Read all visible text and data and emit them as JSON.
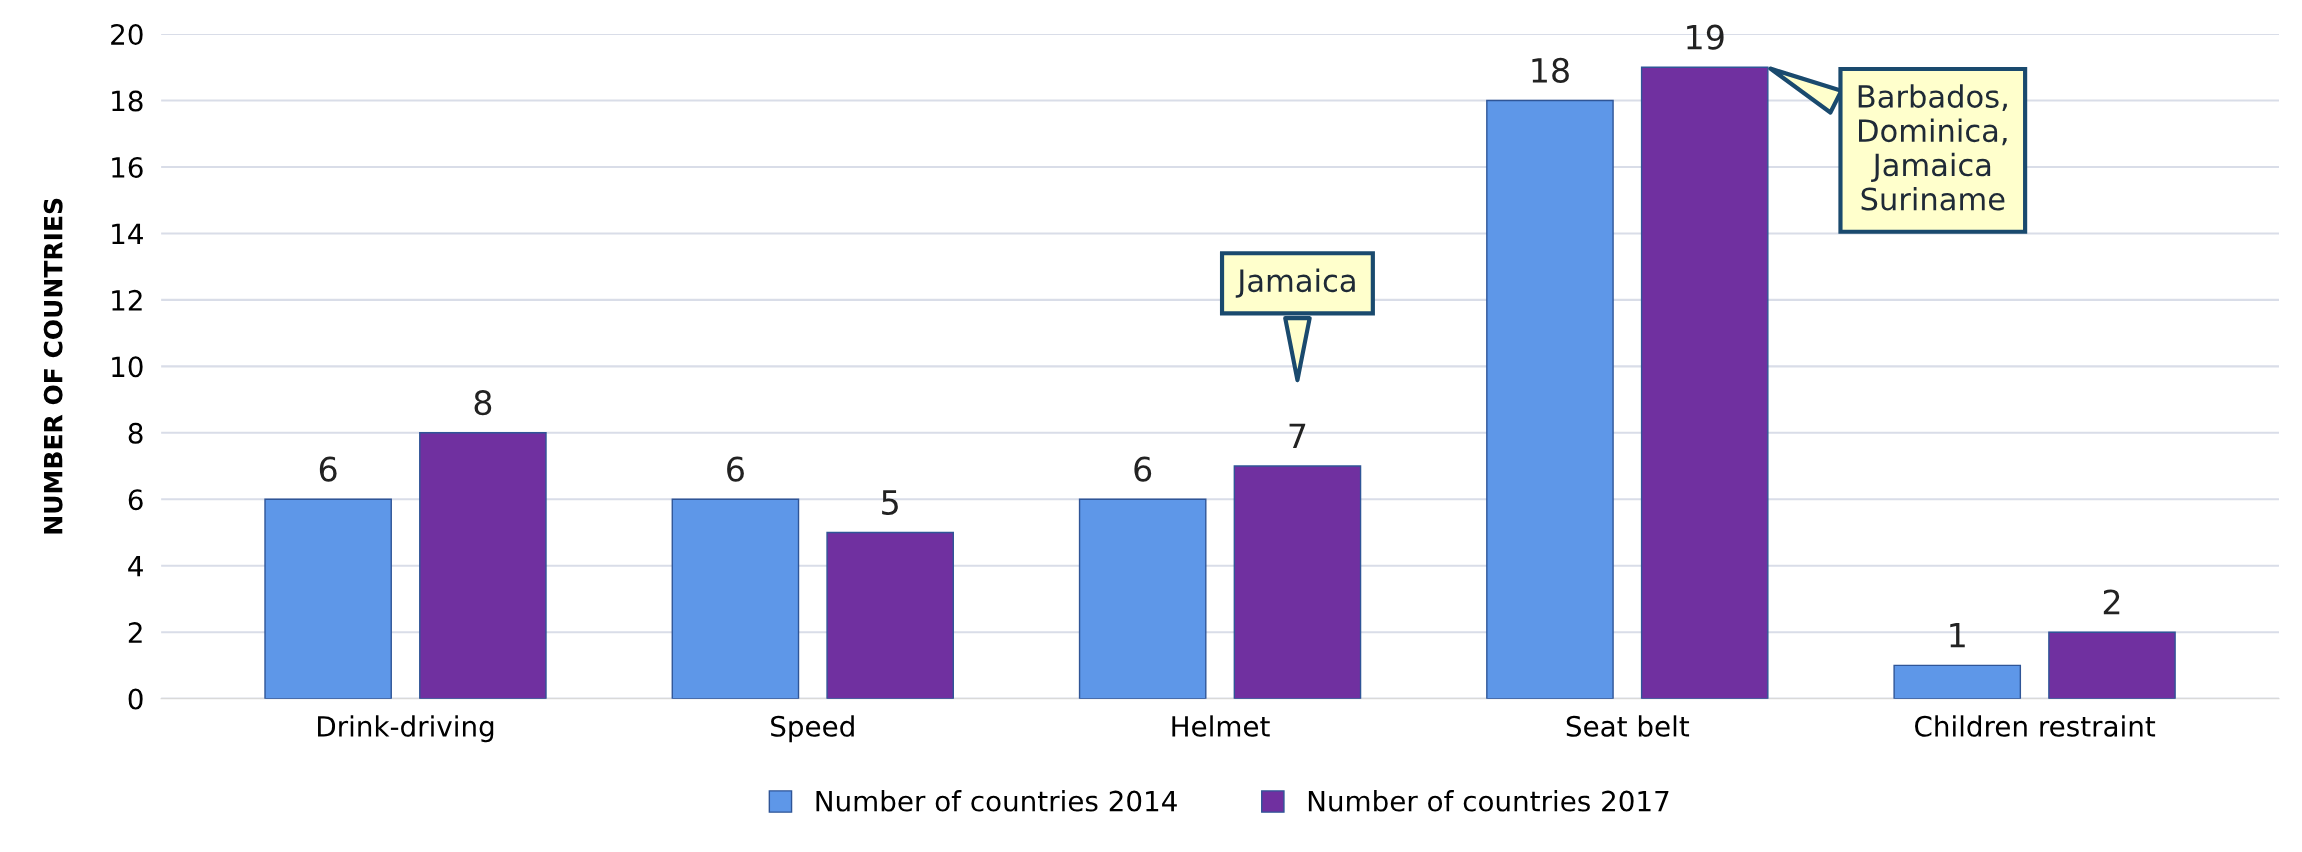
{
  "chart_data": {
    "type": "bar",
    "ylabel": "NUMBER OF COUNTRIES",
    "categories": [
      "Drink-driving",
      "Speed",
      "Helmet",
      "Seat belt",
      "Children restraint"
    ],
    "series": [
      {
        "name": "Number of countries 2014",
        "color": "#5e97e8",
        "values": [
          6,
          6,
          6,
          18,
          1
        ]
      },
      {
        "name": "Number of countries 2017",
        "color": "#7030a0",
        "values": [
          8,
          5,
          7,
          19,
          2
        ]
      }
    ],
    "ylim": [
      0,
      20
    ],
    "yticks": [
      0,
      2,
      4,
      6,
      8,
      10,
      12,
      14,
      16,
      18,
      20
    ],
    "grid": "y",
    "legend": "bottom",
    "data_labels": true,
    "annotations": [
      "Jamaica",
      "Barbados,\nDominica,\nJamaica\nSuriname"
    ]
  }
}
